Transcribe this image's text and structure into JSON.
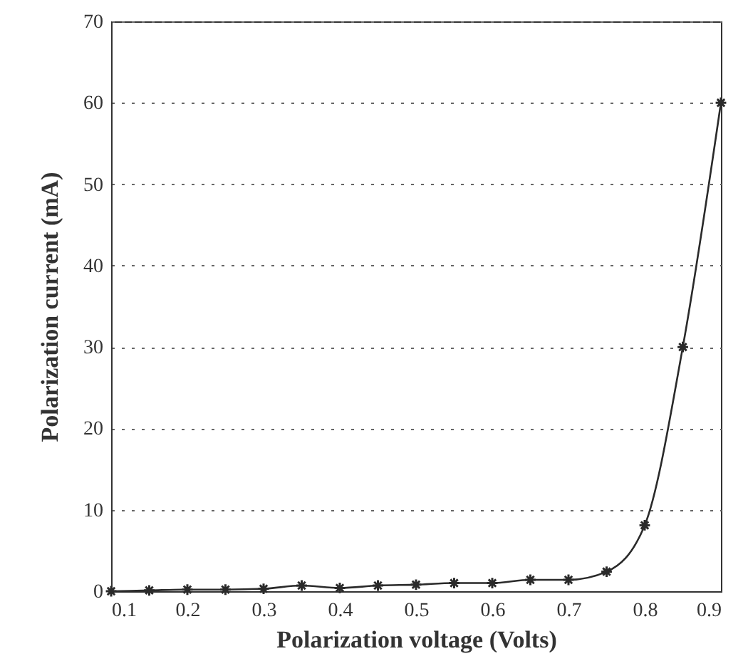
{
  "chart_data": {
    "type": "line",
    "xlabel": "Polarization voltage (Volts)",
    "ylabel": "Polarization current (mA)",
    "x": [
      0.1,
      0.15,
      0.2,
      0.25,
      0.3,
      0.35,
      0.4,
      0.45,
      0.5,
      0.55,
      0.6,
      0.65,
      0.7,
      0.75,
      0.8,
      0.85,
      0.9
    ],
    "values": [
      0,
      0.1,
      0.2,
      0.2,
      0.3,
      0.7,
      0.4,
      0.7,
      0.8,
      1.0,
      1.0,
      1.4,
      1.4,
      2.4,
      8.1,
      30,
      60
    ],
    "color": "#2a2a2a",
    "marker": "cross",
    "line_style": "solid",
    "xlim": [
      0.1,
      0.9
    ],
    "xticks": [
      0.1,
      0.2,
      0.3,
      0.4,
      0.5,
      0.6,
      0.7,
      0.8,
      0.9
    ],
    "ylim": [
      0,
      70
    ],
    "yticks": [
      0,
      10,
      20,
      30,
      40,
      50,
      60,
      70
    ],
    "grid": "y"
  }
}
